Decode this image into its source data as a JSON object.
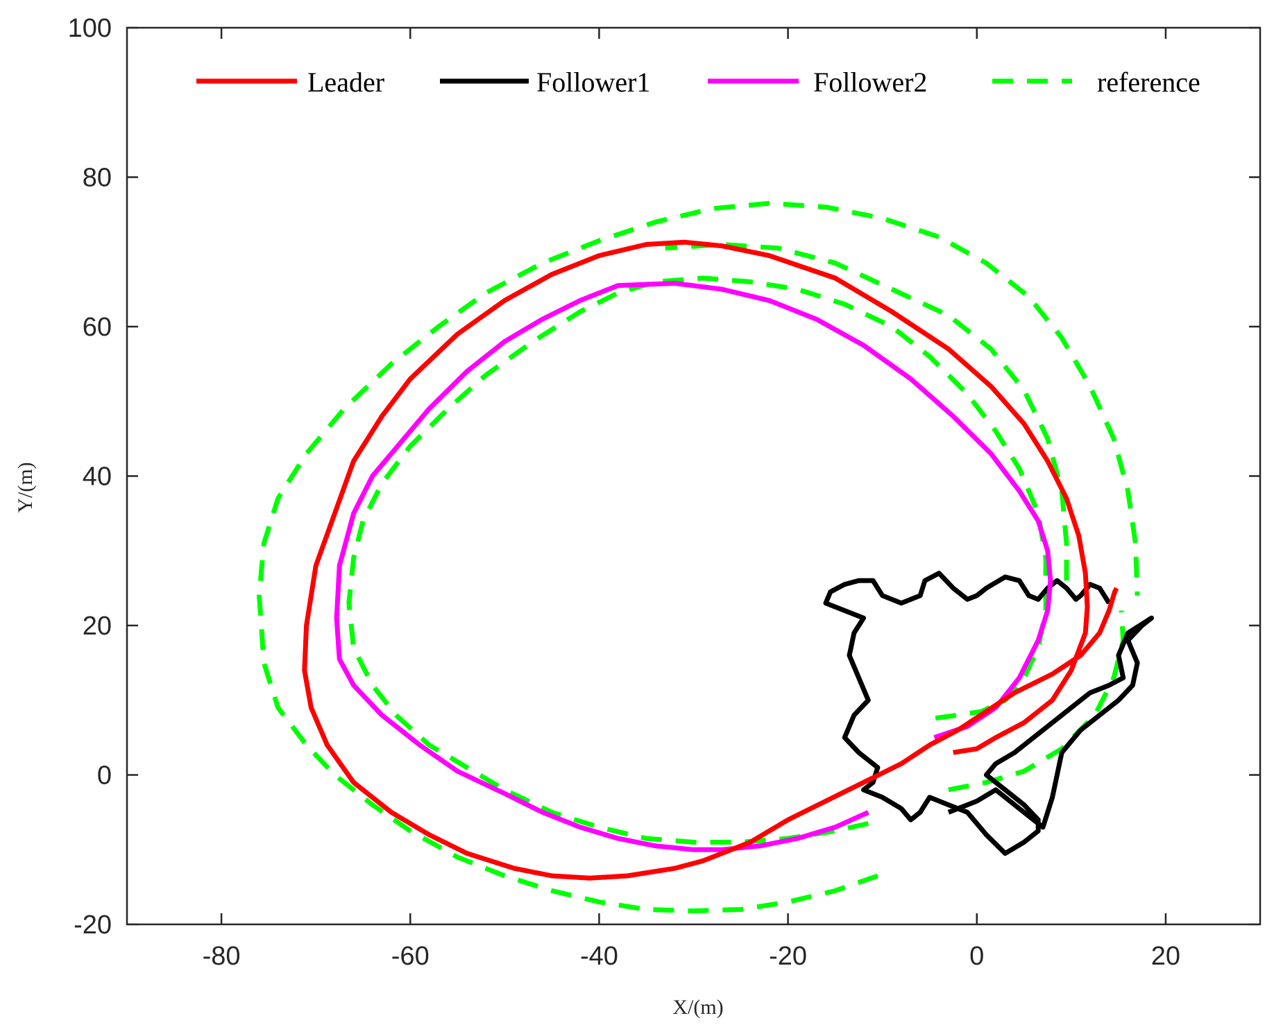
{
  "chart_data": {
    "type": "line",
    "title": "",
    "xlabel": "X/(m)",
    "ylabel": "Y/(m)",
    "xlim": [
      -90,
      30
    ],
    "ylim": [
      -20,
      100
    ],
    "xticks": [
      -80,
      -60,
      -40,
      -20,
      0,
      20
    ],
    "yticks": [
      -20,
      0,
      20,
      40,
      60,
      80,
      100
    ],
    "xtick_labels": [
      "-80",
      "-60",
      "-40",
      "-20",
      "0",
      "20"
    ],
    "ytick_labels": [
      "-20",
      "0",
      "20",
      "40",
      "60",
      "80",
      "100"
    ],
    "grid": false,
    "legend": {
      "position": "top",
      "orientation": "horizontal"
    },
    "series": [
      {
        "name": "Leader",
        "color": "#ff0000",
        "style": "solid",
        "x": [
          -2.5,
          0,
          2,
          5,
          8,
          10,
          11.5,
          11.7,
          11.5,
          10.8,
          9.5,
          7.5,
          5,
          1.5,
          -3,
          -9,
          -15,
          -22,
          -27,
          -31,
          -35,
          -40,
          -45,
          -50,
          -55,
          -60,
          -63,
          -66,
          -68,
          -70,
          -71,
          -71.2,
          -70.5,
          -68.8,
          -66,
          -62,
          -58,
          -54,
          -49,
          -45,
          -41,
          -37,
          -32,
          -29,
          -24,
          -20,
          -16,
          -12,
          -8,
          -5,
          -2,
          1,
          4,
          8,
          11,
          13,
          14,
          14.6,
          14.8
        ],
        "y": [
          3,
          3.5,
          5,
          7,
          10,
          14,
          19,
          22.5,
          27,
          32,
          37,
          42,
          47,
          52,
          57,
          62,
          66.5,
          69.5,
          70.8,
          71.3,
          71,
          69.5,
          67,
          63.5,
          59,
          53,
          48,
          42,
          35,
          28,
          20,
          14,
          9,
          4,
          -1,
          -5,
          -8,
          -10.5,
          -12.5,
          -13.5,
          -13.8,
          -13.5,
          -12.5,
          -11.5,
          -9,
          -6,
          -3.5,
          -1,
          1.5,
          4,
          6,
          8.5,
          11,
          13.5,
          16,
          19,
          22,
          24.5,
          25
        ],
        "note_y_order": "points listed in path order"
      },
      {
        "name": "Follower1",
        "color": "#000000",
        "style": "solid",
        "x": [
          -3,
          0,
          2,
          4,
          6,
          7,
          8,
          9,
          11,
          13,
          15,
          16.5,
          17,
          16,
          17.5,
          18.5,
          16,
          15,
          15.5,
          14,
          12,
          10,
          8,
          6,
          4,
          2,
          1,
          3,
          5,
          6.5,
          6.5,
          5,
          3,
          1,
          -1,
          -3,
          -5,
          -6,
          -7,
          -8,
          -10,
          -12,
          -11,
          -10.5,
          -12.5,
          -14,
          -13,
          -11.5,
          -12.5,
          -13.5,
          -13,
          -12,
          -14,
          -16,
          -15.5,
          -14,
          -12.5,
          -11,
          -10,
          -8,
          -6,
          -5.5,
          -4,
          -2.5,
          -1,
          0,
          1,
          3,
          4.5,
          5.5,
          6.5,
          7.5,
          8.5,
          9.5,
          10.5,
          11,
          12,
          13,
          13.5,
          14
        ],
        "y": [
          -5,
          -3.5,
          -2,
          -4,
          -6,
          -7,
          -3,
          3,
          6,
          8,
          10,
          12,
          15,
          18,
          20,
          21,
          19,
          16,
          13,
          12,
          11,
          9,
          7,
          5,
          3,
          1.5,
          0,
          -2,
          -4,
          -6,
          -7.5,
          -9,
          -10.5,
          -8,
          -5,
          -4,
          -3,
          -5,
          -6,
          -4.5,
          -3,
          -2,
          -1,
          1,
          3,
          5,
          8,
          10,
          13,
          16,
          19,
          21,
          22,
          23,
          24.5,
          25.5,
          26,
          26,
          24,
          23,
          24,
          26,
          27,
          25,
          23.5,
          24,
          25,
          26.5,
          26,
          24,
          23.5,
          25,
          26,
          25,
          23.5,
          24,
          25.5,
          25,
          24,
          23
        ]
      },
      {
        "name": "Follower2",
        "color": "#ff00ff",
        "style": "solid",
        "x": [
          -4.5,
          -1,
          2,
          4.5,
          6.5,
          7.5,
          7.8,
          7.5,
          6.5,
          4.5,
          1.5,
          -2.5,
          -7,
          -12,
          -17,
          -22,
          -27,
          -32,
          -38,
          -42,
          -46,
          -50,
          -54,
          -58,
          -61,
          -64,
          -66,
          -67.5,
          -67.8,
          -67.5,
          -66,
          -63,
          -59,
          -55,
          -50,
          -46,
          -42,
          -38,
          -34,
          -30,
          -27,
          -23,
          -19,
          -15,
          -11.5
        ],
        "y": [
          5,
          6.5,
          9,
          13,
          18,
          22,
          26,
          30,
          34,
          38,
          43,
          48,
          53,
          57.5,
          61,
          63.5,
          65,
          65.8,
          65.5,
          63.5,
          61,
          58,
          54,
          49,
          44.5,
          40,
          35,
          28,
          21,
          15.5,
          12,
          8,
          4,
          0.5,
          -2.5,
          -5,
          -7,
          -8.5,
          -9.5,
          -10,
          -10,
          -9.5,
          -8.5,
          -7,
          -5
        ]
      },
      {
        "name": "reference",
        "color": "#00ff00",
        "style": "dashed",
        "segments": [
          {
            "x": [
              -10.5,
              -15,
              -20,
              -25,
              -30,
              -35,
              -40,
              -45,
              -50,
              -55,
              -60,
              -64,
              -68,
              -71,
              -74,
              -75.5,
              -76,
              -75.5,
              -74,
              -71,
              -67,
              -62,
              -57,
              -52,
              -46,
              -40,
              -34,
              -28,
              -22,
              -16,
              -10,
              -4,
              1,
              5.5,
              9,
              12,
              14.5,
              16,
              16.8,
              17
            ],
            "y": [
              -13.5,
              -15.5,
              -17,
              -18,
              -18.2,
              -18,
              -17,
              -15.5,
              -13.5,
              -11,
              -7.5,
              -4,
              0,
              4,
              9,
              15,
              24,
              31,
              37,
              43,
              49,
              55,
              60,
              64.5,
              68.5,
              71.5,
              74,
              75.8,
              76.5,
              76,
              74.5,
              72,
              68.5,
              64,
              58.5,
              52,
              45,
              38,
              31,
              24
            ]
          },
          {
            "x": [
              -11.5,
              -15,
              -20,
              -25,
              -30,
              -35,
              -40,
              -45,
              -50,
              -54,
              -58,
              -61.5,
              -64,
              -66,
              -66.5,
              -66,
              -65,
              -63,
              -60,
              -56,
              -52,
              -47,
              -42,
              -38,
              -34,
              -29,
              -24,
              -19,
              -14,
              -9,
              -5,
              -1,
              2,
              4.5,
              6.5,
              7.3,
              7.3,
              6.5,
              5,
              3,
              0.5,
              -2,
              -5
            ],
            "y": [
              -6.5,
              -7.5,
              -8.5,
              -9,
              -9,
              -8.5,
              -7,
              -5,
              -2,
              1,
              4,
              8,
              12,
              17,
              23,
              29,
              34,
              39,
              44,
              49,
              53.5,
              58,
              62,
              64.5,
              66,
              66.5,
              66,
              65,
              63,
              60,
              56,
              51,
              46,
              41,
              35,
              29,
              22,
              17,
              13,
              10,
              8.5,
              8,
              7.5
            ]
          },
          {
            "x": [
              -3,
              1,
              5,
              9,
              12.5,
              14.5,
              15.5,
              15.3
            ],
            "y": [
              -2,
              -1,
              0.5,
              3.5,
              8,
              13,
              18,
              22
            ]
          },
          {
            "x": [
              9.5,
              9.5,
              9,
              7.5,
              5,
              1.5,
              -3,
              -9,
              -15,
              -21,
              -27,
              -33
            ],
            "y": [
              26,
              31,
              38,
              45,
              51.5,
              57,
              61.5,
              65,
              68.5,
              70.5,
              71,
              70.5
            ]
          }
        ]
      }
    ]
  }
}
